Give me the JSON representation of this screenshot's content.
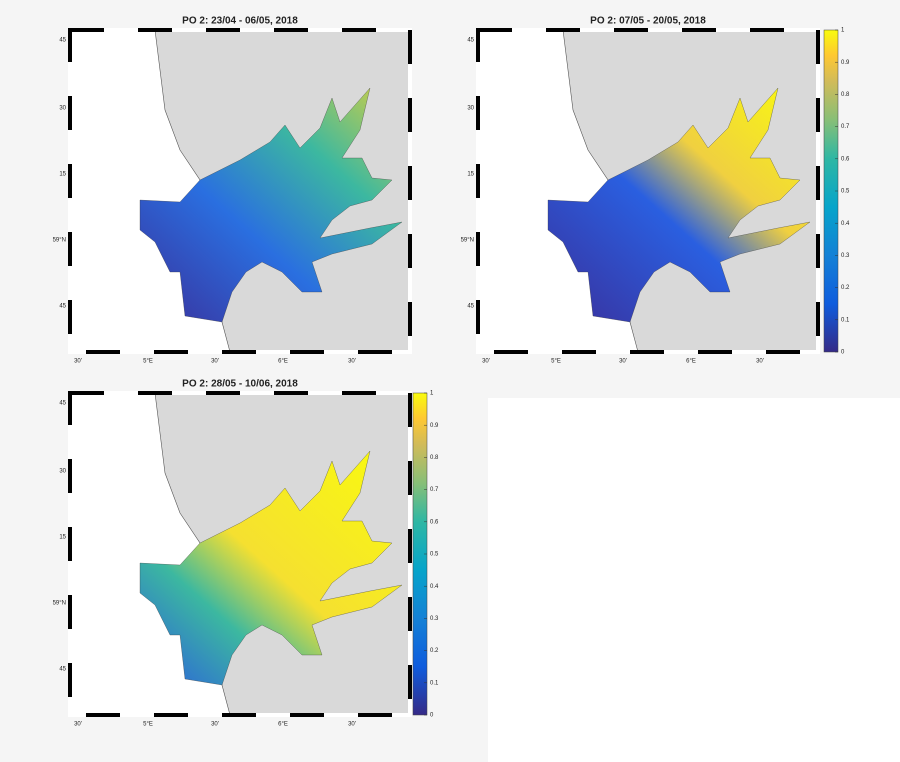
{
  "panels": [
    {
      "title": "PO 2: 23/04 - 06/05, 2018",
      "colorbar": false
    },
    {
      "title": "PO 2: 07/05 - 20/05, 2018",
      "colorbar": true
    },
    {
      "title": "PO 2: 28/05 - 10/06, 2018",
      "colorbar": true
    }
  ],
  "x_labels": [
    "30'",
    "5°E",
    "30'",
    "6°E",
    "30'"
  ],
  "y_labels": [
    "45",
    "30",
    "15",
    "59°N",
    "45"
  ],
  "colorbar_lim": [
    0,
    1
  ],
  "colorbar_ticks": [
    0,
    0.1,
    0.2,
    0.3,
    0.4,
    0.5,
    0.6,
    0.7,
    0.8,
    0.9,
    1
  ]
}
